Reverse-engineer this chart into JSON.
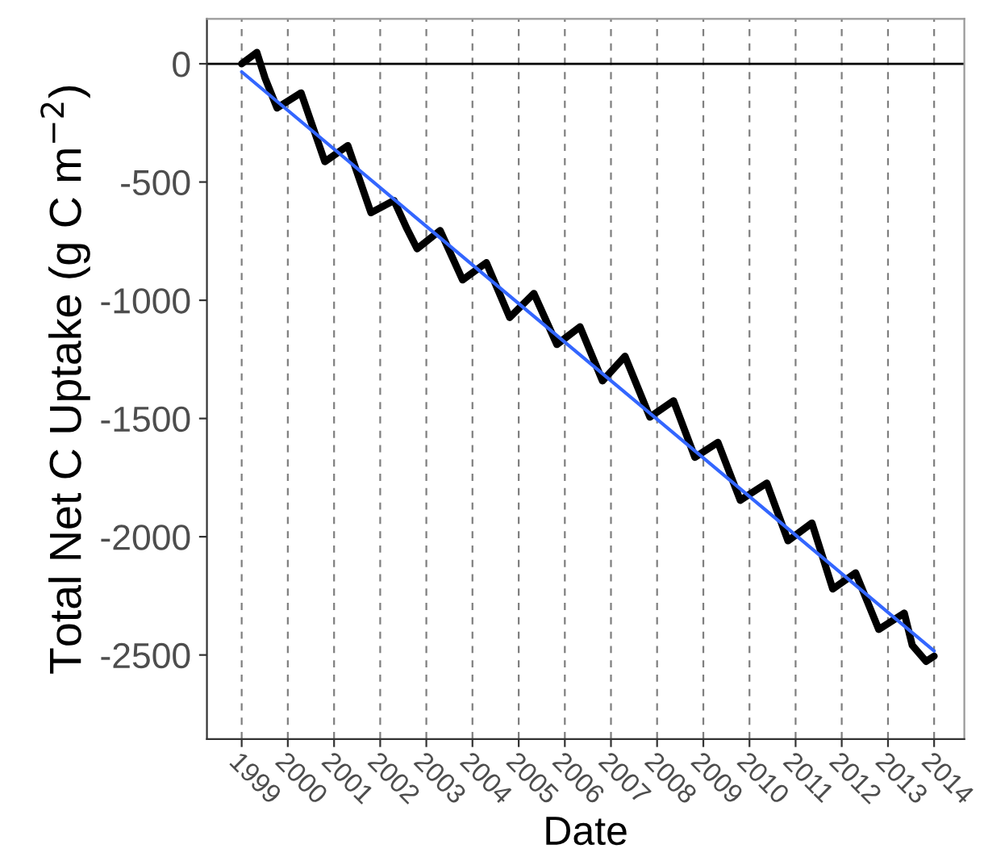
{
  "chart_data": {
    "type": "line",
    "xlabel": "Date",
    "ylabel": "Total Net C Uptake (g C m$^{−2}$)",
    "series": [
      {
        "color": "#000000",
        "x": [
          "1999-01-01",
          "1999-05-01",
          "1999-07-05",
          "1999-10-08",
          "2000-04-15",
          "2000-10-20",
          "2001-04-20",
          "2001-10-20",
          "2002-04-20",
          "2002-08-01",
          "2002-10-20",
          "2003-04-20",
          "2003-10-15",
          "2004-04-20",
          "2004-10-22",
          "2005-05-01",
          "2005-10-30",
          "2006-05-01",
          "2006-10-26",
          "2007-04-22",
          "2007-11-05",
          "2008-05-10",
          "2008-10-26",
          "2009-04-26",
          "2009-10-20",
          "2010-05-18",
          "2010-11-02",
          "2011-05-10",
          "2011-10-22",
          "2012-04-20",
          "2012-10-20",
          "2013-05-10",
          "2013-07-12",
          "2013-10-30",
          "2014-01-01"
        ],
        "values": [
          0,
          48,
          -61,
          -187,
          -123,
          -414,
          -346,
          -630,
          -578,
          -698,
          -782,
          -705,
          -914,
          -841,
          -1073,
          -971,
          -1187,
          -1112,
          -1341,
          -1237,
          -1494,
          -1425,
          -1664,
          -1601,
          -1846,
          -1773,
          -2017,
          -1942,
          -2221,
          -2153,
          -2392,
          -2323,
          -2459,
          -2527,
          -2505
        ]
      },
      {
        "color": "#3366ff",
        "x": [
          "1999-01-01",
          "2014-01-01"
        ],
        "values": [
          -34,
          -2483
        ]
      }
    ],
    "xlim": [
      "1998-04-01",
      "2014-08-28"
    ],
    "xticks": [
      {
        "value": "1999-01-01",
        "label": "1999"
      },
      {
        "value": "2000-01-01",
        "label": "2000"
      },
      {
        "value": "2001-01-01",
        "label": "2001"
      },
      {
        "value": "2002-01-01",
        "label": "2002"
      },
      {
        "value": "2003-01-01",
        "label": "2003"
      },
      {
        "value": "2004-01-01",
        "label": "2004"
      },
      {
        "value": "2005-01-01",
        "label": "2005"
      },
      {
        "value": "2006-01-01",
        "label": "2006"
      },
      {
        "value": "2007-01-01",
        "label": "2007"
      },
      {
        "value": "2008-01-01",
        "label": "2008"
      },
      {
        "value": "2009-01-01",
        "label": "2009"
      },
      {
        "value": "2010-01-01",
        "label": "2010"
      },
      {
        "value": "2011-01-01",
        "label": "2011"
      },
      {
        "value": "2012-01-01",
        "label": "2012"
      },
      {
        "value": "2013-01-01",
        "label": "2013"
      },
      {
        "value": "2014-01-01",
        "label": "2014"
      }
    ],
    "ylim": [
      -2856,
      190
    ],
    "yticks": [
      0,
      -500,
      -1000,
      -1500,
      -2000,
      -2500
    ],
    "ref_lines": [
      {
        "axis": "y",
        "value": 0,
        "color": "#000000",
        "line_style": "solid"
      }
    ],
    "grid": "x",
    "line_style": "solid",
    "marker": "none"
  }
}
